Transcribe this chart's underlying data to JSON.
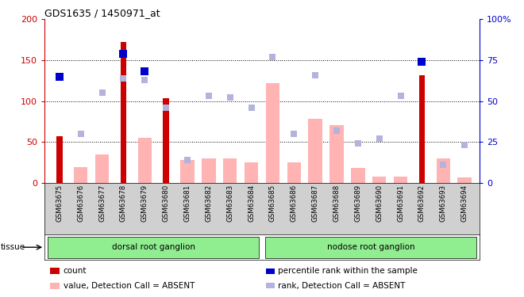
{
  "title": "GDS1635 / 1450971_at",
  "samples": [
    "GSM63675",
    "GSM63676",
    "GSM63677",
    "GSM63678",
    "GSM63679",
    "GSM63680",
    "GSM63681",
    "GSM63682",
    "GSM63683",
    "GSM63684",
    "GSM63685",
    "GSM63686",
    "GSM63687",
    "GSM63688",
    "GSM63689",
    "GSM63690",
    "GSM63691",
    "GSM63692",
    "GSM63693",
    "GSM63694"
  ],
  "count_values": [
    57,
    0,
    0,
    172,
    0,
    103,
    0,
    0,
    0,
    0,
    0,
    0,
    0,
    0,
    0,
    0,
    0,
    132,
    0,
    0
  ],
  "rank_values_pct": [
    65,
    0,
    0,
    79,
    68,
    0,
    0,
    0,
    0,
    0,
    0,
    0,
    0,
    0,
    0,
    0,
    0,
    74,
    0,
    0
  ],
  "absent_value_values": [
    0,
    19,
    35,
    0,
    55,
    0,
    28,
    30,
    30,
    25,
    122,
    25,
    78,
    70,
    18,
    7,
    7,
    0,
    30,
    6
  ],
  "absent_rank_pct": [
    0,
    30,
    55,
    64,
    63,
    46,
    14,
    53,
    52,
    46,
    77,
    30,
    66,
    32,
    24,
    27,
    53,
    0,
    11,
    23
  ],
  "tissue_groups": [
    {
      "label": "dorsal root ganglion",
      "start": 0,
      "end": 9
    },
    {
      "label": "nodose root ganglion",
      "start": 10,
      "end": 19
    }
  ],
  "left_ylim": [
    0,
    200
  ],
  "right_ylim": [
    0,
    100
  ],
  "left_yticks": [
    0,
    50,
    100,
    150,
    200
  ],
  "right_yticks": [
    0,
    25,
    50,
    75,
    100
  ],
  "right_yticklabels": [
    "0",
    "25",
    "50",
    "75",
    "100%"
  ],
  "left_color": "#cc0000",
  "rank_color": "#0000cc",
  "absent_value_color": "#ffb3b3",
  "absent_rank_color": "#b3b3dd",
  "tissue_color": "#90EE90",
  "legend_items": [
    {
      "label": "count",
      "color": "#cc0000",
      "type": "rect"
    },
    {
      "label": "percentile rank within the sample",
      "color": "#0000cc",
      "type": "square"
    },
    {
      "label": "value, Detection Call = ABSENT",
      "color": "#ffb3b3",
      "type": "rect"
    },
    {
      "label": "rank, Detection Call = ABSENT",
      "color": "#b3b3dd",
      "type": "square"
    }
  ]
}
